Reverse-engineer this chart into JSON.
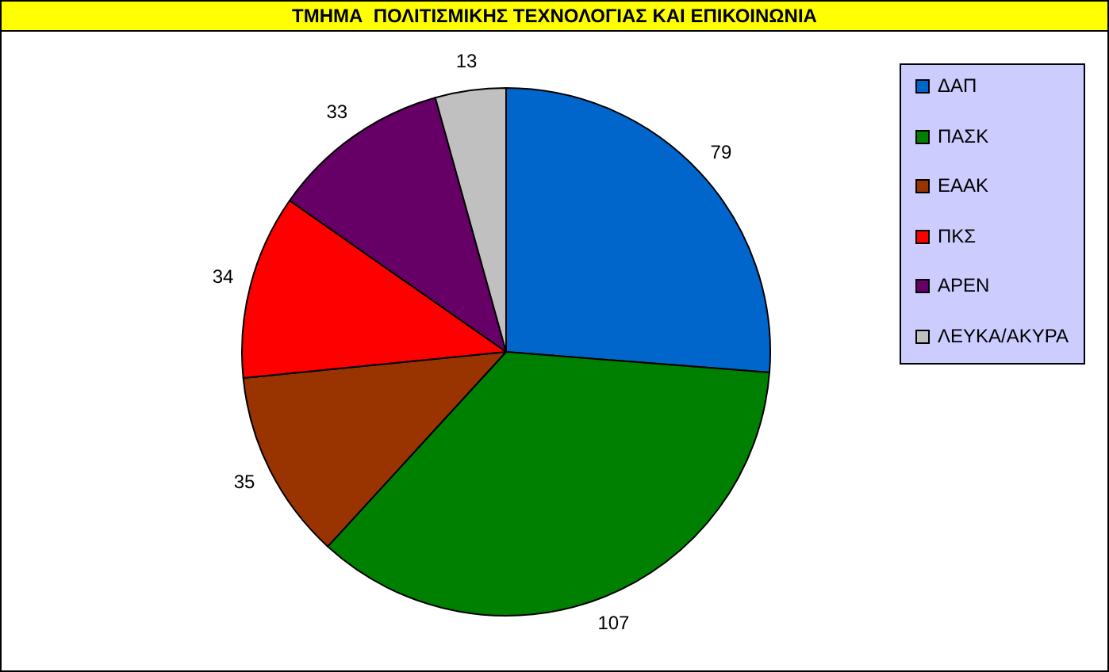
{
  "chart_data": {
    "type": "pie",
    "title": "ΤΜΗΜΑ  ΠΟΛΙΤΙΣΜΙΚΗΣ ΤΕΧΝΟΛΟΓΙΑΣ ΚΑΙ ΕΠΙΚΟΙΝΩΝΙΑ",
    "categories": [
      "ΔΑΠ",
      "ΠΑΣΚ",
      "ΕΑΑΚ",
      "ΠΚΣ",
      "ΑΡΕΝ",
      "ΛΕΥΚΑ/ΑΚΥΡΑ"
    ],
    "values": [
      79,
      107,
      35,
      34,
      33,
      13
    ],
    "colors": [
      "#0066cc",
      "#008000",
      "#993300",
      "#ff0000",
      "#660066",
      "#c0c0c0"
    ],
    "data_labels": true,
    "legend": "right"
  }
}
